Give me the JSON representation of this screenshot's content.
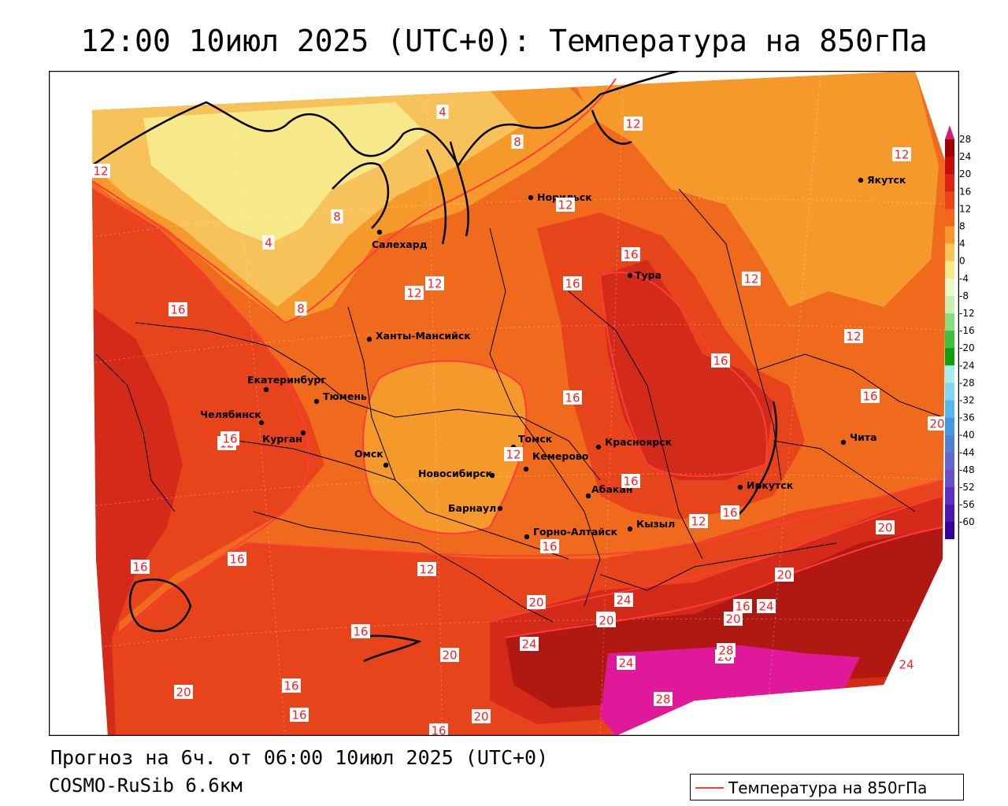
{
  "title": "12:00 10июл 2025 (UTC+0): Температура на 850гПа",
  "forecast_text": "Прогноз на 6ч. от 06:00 10июл 2025 (UTC+0)",
  "model_text": "COSMO-RuSib 6.6км",
  "legend_label": "Температура на 850гПа",
  "colors": {
    "isotherm_line": "#ff3b3b",
    "zone_0_4": "#f7e98a",
    "zone_4_8": "#f8c25a",
    "zone_8_12": "#f59a2a",
    "zone_12_16": "#f06a1e",
    "zone_16_20": "#e8441c",
    "zone_20_24": "#d42a1a",
    "zone_24_28": "#b01812",
    "zone_28_plus": "#e0189a"
  },
  "colorbar": {
    "ticks": [
      "28",
      "24",
      "20",
      "16",
      "12",
      "8",
      "4",
      "0",
      "-4",
      "-8",
      "-12",
      "-16",
      "-20",
      "-24",
      "-28",
      "-32",
      "-36",
      "-40",
      "-44",
      "-48",
      "-52",
      "-56",
      "-60"
    ],
    "colors": [
      "#a00000",
      "#c40c0c",
      "#dc2414",
      "#ea4418",
      "#f2661e",
      "#f7992c",
      "#f9c45a",
      "#f7e98a",
      "#eef7c8",
      "#c8f0b0",
      "#88dd80",
      "#40c040",
      "#10a010",
      "#a8ecec",
      "#80d8f0",
      "#58b8ec",
      "#4898e0",
      "#5080d0",
      "#6068d0",
      "#6a50c8",
      "#5a30c0",
      "#4818b0",
      "#300098"
    ]
  },
  "cities": [
    {
      "name": "Норильск"
    },
    {
      "name": "Якутск"
    },
    {
      "name": "Салехард"
    },
    {
      "name": "Тура"
    },
    {
      "name": "Ханты-Мансийск"
    },
    {
      "name": "Екатеринбург"
    },
    {
      "name": "Тюмень"
    },
    {
      "name": "Челябинск"
    },
    {
      "name": "Курган"
    },
    {
      "name": "Омск"
    },
    {
      "name": "Томск"
    },
    {
      "name": "Новосибирск"
    },
    {
      "name": "Кемерово"
    },
    {
      "name": "Красноярск"
    },
    {
      "name": "Барнаул"
    },
    {
      "name": "Абакан"
    },
    {
      "name": "Иркутск"
    },
    {
      "name": "Чита"
    },
    {
      "name": "Горно-Алтайск"
    },
    {
      "name": "Кызыл"
    }
  ],
  "isotherm_labels": [
    "4",
    "4",
    "8",
    "8",
    "8",
    "12",
    "12",
    "12",
    "12",
    "12",
    "12",
    "12",
    "12",
    "12",
    "12",
    "12",
    "12",
    "16",
    "16",
    "16",
    "16",
    "16",
    "16",
    "16",
    "16",
    "16",
    "16",
    "16",
    "16",
    "16",
    "16",
    "16",
    "16",
    "20",
    "20",
    "20",
    "20",
    "20",
    "20",
    "20",
    "20",
    "20",
    "24",
    "24",
    "24",
    "24",
    "24",
    "28",
    "28",
    "28",
    "16",
    "20"
  ]
}
